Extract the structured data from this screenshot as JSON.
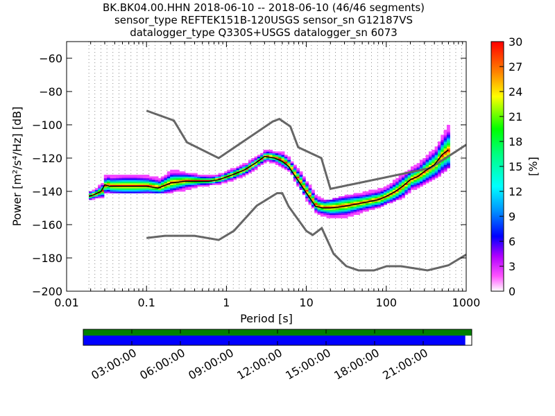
{
  "title": {
    "line1": "BK.BK04.00.HHN   2018-06-10 -- 2018-06-10  (46/46 segments)",
    "line2": "sensor_type REFTEK151B-120USGS sensor_sn G12187VS",
    "line3": "datalogger_type Q330S+USGS datalogger_sn 6073"
  },
  "chart_data": [
    {
      "type": "heatmap",
      "xlabel": "Period [s]",
      "ylabel": "Power [m²/s⁴/Hz] [dB]",
      "xscale": "log",
      "xlim": [
        0.01,
        1000
      ],
      "ylim": [
        -200,
        -50
      ],
      "xticks": [
        0.01,
        0.1,
        1,
        10,
        100,
        1000
      ],
      "xtick_labels": [
        "0.01",
        "0.1",
        "1",
        "10",
        "100",
        "1000"
      ],
      "yticks": [
        -200,
        -180,
        -160,
        -140,
        -120,
        -100,
        -80,
        -60
      ],
      "ytick_labels": [
        "−200",
        "−180",
        "−160",
        "−140",
        "−120",
        "−100",
        "−80",
        "−60"
      ],
      "grid": "dotted vertical lines at period bins",
      "colorbar": {
        "label": "[%]",
        "range": [
          0,
          30
        ],
        "ticks": [
          0,
          3,
          6,
          9,
          12,
          15,
          18,
          21,
          24,
          27,
          30
        ],
        "colormap": "pqlx (white-magenta-blue-cyan-green-yellow-red)"
      },
      "model_lines": {
        "color": "#666666",
        "high_noise_model": {
          "x": [
            0.1,
            0.22,
            0.32,
            0.8,
            3.8,
            4.6,
            6.3,
            7.9,
            15.4,
            20,
            354.8,
            1000
          ],
          "y": [
            -91.5,
            -97.4,
            -110.5,
            -120,
            -98,
            -96.5,
            -101,
            -113.5,
            -120,
            -138.5,
            -126,
            -112
          ]
        },
        "low_noise_model": {
          "x": [
            0.1,
            0.17,
            0.4,
            0.8,
            1.24,
            2.4,
            4.3,
            5,
            6,
            10,
            12,
            15.6,
            21.9,
            31.6,
            45,
            70,
            101,
            154,
            328,
            600,
            1000
          ],
          "y": [
            -168,
            -166.7,
            -166.7,
            -169.2,
            -163.7,
            -148.6,
            -141.1,
            -141.1,
            -149,
            -163.8,
            -166.2,
            -162.1,
            -177.5,
            -185,
            -187.5,
            -187.5,
            -185,
            -185,
            -187.5,
            -184.4,
            -178
          ]
        }
      },
      "mode_line": {
        "color": "#000000",
        "x": [
          0.019,
          0.022,
          0.027,
          0.03,
          0.035,
          0.05,
          0.07,
          0.1,
          0.14,
          0.2,
          0.3,
          0.45,
          0.6,
          0.8,
          1.2,
          1.7,
          2.3,
          3,
          4,
          5,
          6,
          7,
          8,
          10,
          13,
          16,
          20,
          30,
          50,
          80,
          100,
          130,
          160,
          200,
          250,
          300,
          400,
          500,
          600
        ],
        "y": [
          -143,
          -142,
          -140,
          -136,
          -137,
          -137,
          -137,
          -137,
          -138,
          -135,
          -134,
          -134,
          -134,
          -133,
          -130,
          -127,
          -123,
          -119,
          -120,
          -122,
          -125,
          -130,
          -134,
          -141,
          -149,
          -150,
          -150,
          -149,
          -147,
          -145,
          -143,
          -140,
          -137,
          -133,
          -131,
          -128,
          -124,
          -118,
          -115
        ]
      },
      "density_band": {
        "x": [
          0.019,
          0.022,
          0.027,
          0.03,
          0.035,
          0.05,
          0.07,
          0.1,
          0.14,
          0.2,
          0.3,
          0.45,
          0.6,
          0.8,
          1.2,
          1.7,
          2.3,
          3,
          4,
          5,
          6,
          7,
          8,
          10,
          13,
          16,
          20,
          30,
          50,
          80,
          100,
          130,
          160,
          200,
          250,
          300,
          400,
          500,
          600
        ],
        "upper": [
          -141,
          -139,
          -135,
          -130,
          -131,
          -130,
          -130,
          -131,
          -132,
          -128,
          -130,
          -131,
          -131,
          -130,
          -127,
          -124,
          -120,
          -116,
          -117,
          -118,
          -121,
          -126,
          -128,
          -136,
          -144,
          -146,
          -146,
          -144,
          -142,
          -139,
          -137,
          -133,
          -130,
          -127,
          -124,
          -120,
          -115,
          -106,
          -100
        ],
        "lower": [
          -145,
          -144,
          -143,
          -140,
          -141,
          -141,
          -141,
          -141,
          -141,
          -140,
          -139,
          -137,
          -136,
          -135,
          -133,
          -130,
          -126,
          -122,
          -123,
          -126,
          -128,
          -134,
          -138,
          -146,
          -153,
          -155,
          -157,
          -156,
          -152,
          -149,
          -147,
          -145,
          -143,
          -139,
          -137,
          -135,
          -132,
          -128,
          -125
        ]
      }
    },
    {
      "type": "bar",
      "xtick_labels": [
        "03:00:00",
        "06:00:00",
        "09:00:00",
        "12:00:00",
        "15:00:00",
        "18:00:00",
        "21:00:00"
      ],
      "xlim_hours": [
        0,
        24
      ],
      "rows": [
        {
          "name": "",
          "color": "#008000",
          "coverage_hours": [
            0,
            24
          ]
        },
        {
          "name": "",
          "color": "#0000ff",
          "coverage_hours": [
            0,
            23.6
          ]
        }
      ]
    }
  ]
}
